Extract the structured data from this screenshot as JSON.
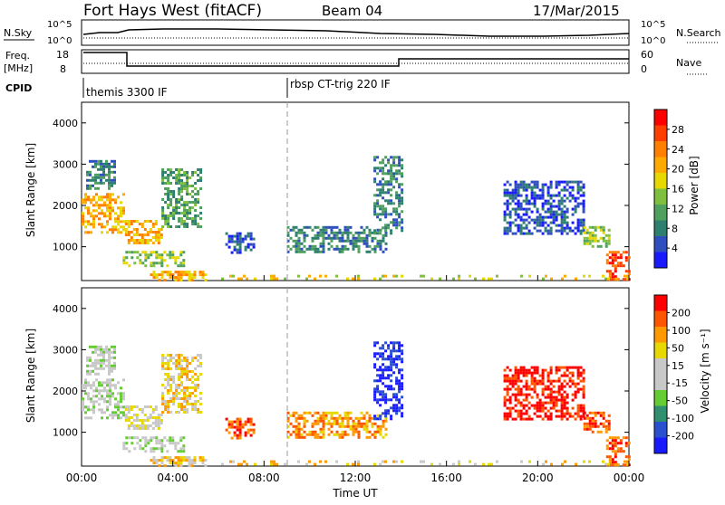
{
  "header": {
    "radar_title": "Fort Hays West (fitACF)",
    "beam_label": "Beam 04",
    "date_label": "17/Mar/2015"
  },
  "panels": {
    "nsky_label": "N.Sky",
    "nsearch_label": "N.Search",
    "freq_label_line1": "Freq.",
    "freq_label_line2": "[MHz]",
    "nave_label": "Nave",
    "cpid_label": "CPID",
    "nsky_ticks": [
      "10^5",
      "10^0"
    ],
    "freq_ticks": [
      "18",
      "8"
    ],
    "nave_ticks": [
      "60",
      "0"
    ]
  },
  "cpid_modes": [
    {
      "name": "themis 3300 IF",
      "start_hour": 0
    },
    {
      "name": "rbsp CT-trig 220 IF",
      "start_hour": 9.0
    }
  ],
  "colors": {
    "power_scale": [
      "#1a1aff",
      "#2f4fbf",
      "#2f7f6f",
      "#4f9f5f",
      "#7fbf3f",
      "#e6d800",
      "#ffaa00",
      "#ff7f00",
      "#ff3f00",
      "#ff0000"
    ],
    "velocity_scale": [
      "#1a1aff",
      "#2a4fcf",
      "#2f8f6f",
      "#66cc33",
      "#c8c8c8",
      "#c8c8c8",
      "#e6d800",
      "#ff9900",
      "#ff5500",
      "#ff0000"
    ]
  },
  "chart_data": [
    {
      "type": "heatmap",
      "name": "Power",
      "ylabel": "Slant Range [km]",
      "colorbar_label": "Power [dB]",
      "colorbar_ticks": [
        "28",
        "24",
        "20",
        "16",
        "12",
        "8",
        "4"
      ],
      "yticks": [
        "4000",
        "3000",
        "2000",
        "1000"
      ],
      "ylim": [
        180,
        4500
      ],
      "xlim": [
        0,
        24
      ],
      "blobs": [
        {
          "x0": 0.0,
          "x1": 1.9,
          "y0": 1350,
          "y1": 2300,
          "level": 6
        },
        {
          "x0": 0.2,
          "x1": 1.5,
          "y0": 2400,
          "y1": 3100,
          "level": 2
        },
        {
          "x0": 1.9,
          "x1": 3.5,
          "y0": 1100,
          "y1": 1650,
          "level": 6
        },
        {
          "x0": 3.5,
          "x1": 5.2,
          "y0": 1500,
          "y1": 2900,
          "level": 3
        },
        {
          "x0": 1.8,
          "x1": 4.5,
          "y0": 550,
          "y1": 900,
          "level": 4
        },
        {
          "x0": 3.0,
          "x1": 5.5,
          "y0": 220,
          "y1": 420,
          "level": 6
        },
        {
          "x0": 6.3,
          "x1": 7.5,
          "y0": 850,
          "y1": 1350,
          "level": 1
        },
        {
          "x0": 9.0,
          "x1": 13.3,
          "y0": 900,
          "y1": 1500,
          "level": 2
        },
        {
          "x0": 12.8,
          "x1": 14.0,
          "y0": 1300,
          "y1": 3200,
          "level": 2
        },
        {
          "x0": 18.5,
          "x1": 22.0,
          "y0": 1300,
          "y1": 2600,
          "level": 1
        },
        {
          "x0": 22.0,
          "x1": 23.1,
          "y0": 1000,
          "y1": 1500,
          "level": 4
        },
        {
          "x0": 23.0,
          "x1": 24.0,
          "y0": 200,
          "y1": 900,
          "level": 8
        },
        {
          "x0": 6.0,
          "x1": 24.0,
          "y0": 190,
          "y1": 320,
          "level": 5
        }
      ]
    },
    {
      "type": "heatmap",
      "name": "Velocity",
      "ylabel": "Slant Range [km]",
      "colorbar_label": "Velocity [m s⁻¹]",
      "colorbar_ticks": [
        "200",
        "100",
        "50",
        "15",
        "-15",
        "-50",
        "-100",
        "-200"
      ],
      "yticks": [
        "4000",
        "3000",
        "2000",
        "1000"
      ],
      "ylim": [
        180,
        4500
      ],
      "xlim": [
        0,
        24
      ],
      "xticks": [
        "00:00",
        "04:00",
        "08:00",
        "12:00",
        "16:00",
        "20:00",
        "00:00"
      ],
      "xlabel": "Time UT",
      "blobs": [
        {
          "x0": 0.0,
          "x1": 1.9,
          "y0": 1350,
          "y1": 2300,
          "level": 4
        },
        {
          "x0": 0.2,
          "x1": 1.5,
          "y0": 2400,
          "y1": 3100,
          "level": 4
        },
        {
          "x0": 1.9,
          "x1": 3.5,
          "y0": 1100,
          "y1": 1650,
          "level": 5
        },
        {
          "x0": 3.5,
          "x1": 5.2,
          "y0": 1500,
          "y1": 2900,
          "level": 6
        },
        {
          "x0": 1.8,
          "x1": 4.5,
          "y0": 550,
          "y1": 900,
          "level": 4
        },
        {
          "x0": 3.0,
          "x1": 5.5,
          "y0": 220,
          "y1": 420,
          "level": 6
        },
        {
          "x0": 6.3,
          "x1": 7.5,
          "y0": 850,
          "y1": 1350,
          "level": 8
        },
        {
          "x0": 9.0,
          "x1": 13.3,
          "y0": 900,
          "y1": 1500,
          "level": 7
        },
        {
          "x0": 12.8,
          "x1": 14.0,
          "y0": 1300,
          "y1": 3200,
          "level": 0
        },
        {
          "x0": 18.5,
          "x1": 22.0,
          "y0": 1300,
          "y1": 2600,
          "level": 9
        },
        {
          "x0": 22.0,
          "x1": 23.1,
          "y0": 1000,
          "y1": 1500,
          "level": 8
        },
        {
          "x0": 23.0,
          "x1": 24.0,
          "y0": 200,
          "y1": 900,
          "level": 8
        },
        {
          "x0": 6.0,
          "x1": 24.0,
          "y0": 190,
          "y1": 320,
          "level": 6
        }
      ]
    }
  ]
}
